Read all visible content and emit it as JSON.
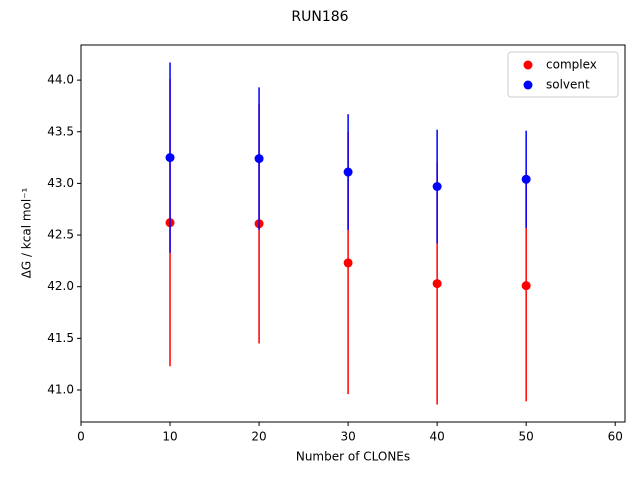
{
  "chart_data": {
    "type": "errorbar-scatter",
    "title": "RUN186",
    "x_label": "Number of CLONEs",
    "y_label": "ΔG / kcal mol⁻¹",
    "series": [
      {
        "name": "complex",
        "color": "#ff0000",
        "x": [
          10,
          20,
          30,
          40,
          50
        ],
        "values": [
          42.62,
          42.61,
          42.23,
          42.03,
          42.01
        ],
        "errors": [
          1.39,
          1.16,
          1.27,
          1.17,
          1.12
        ]
      },
      {
        "name": "solvent",
        "color": "#0000ff",
        "x": [
          10,
          20,
          30,
          40,
          50
        ],
        "values": [
          43.25,
          43.24,
          43.11,
          42.97,
          43.04
        ],
        "errors": [
          0.92,
          0.69,
          0.56,
          0.55,
          0.47
        ]
      }
    ],
    "xlim": [
      0,
      61.1
    ],
    "xticks": [
      0,
      10,
      20,
      30,
      40,
      50,
      60
    ],
    "ylim": [
      40.69,
      44.34
    ],
    "yticks": [
      {
        "value": 41,
        "label": "41.0"
      },
      41.5,
      {
        "value": 42,
        "label": "42.0"
      },
      42.5,
      {
        "value": 43,
        "label": "43.0"
      },
      43.5,
      {
        "value": 44,
        "label": "44.0"
      }
    ],
    "legend": "upper-right"
  }
}
